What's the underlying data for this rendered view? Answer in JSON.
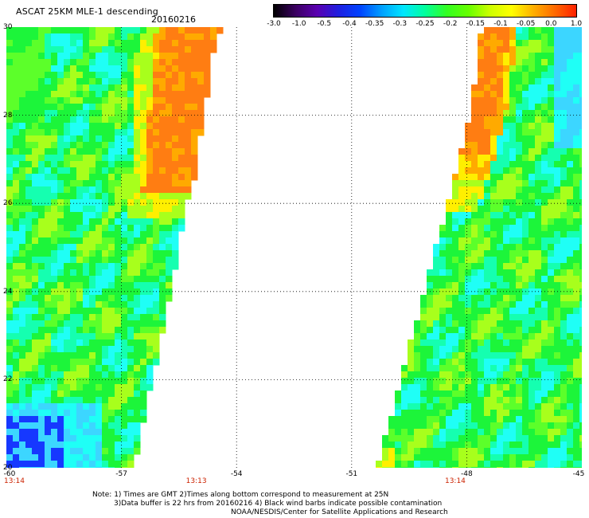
{
  "header": {
    "title": "ASCAT 25KM MLE-1 descending",
    "date": "20160216"
  },
  "colorbar": {
    "labels": [
      "-3.0",
      "-1.0",
      "-0.5",
      "-0.4",
      "-0.35",
      "-0.3",
      "-0.25",
      "-0.2",
      "-0.15",
      "-0.1",
      "-0.05",
      "0.0",
      "1.0"
    ],
    "colors": [
      "#000000",
      "#3a0060",
      "#5a00b0",
      "#1f1fe0",
      "#0044ff",
      "#00a0ff",
      "#00e6ff",
      "#00ff9c",
      "#33ff22",
      "#66ff00",
      "#ccff00",
      "#ffff00",
      "#ffb000",
      "#ff6a00",
      "#ff2000"
    ]
  },
  "map": {
    "lat_labels": [
      "30",
      "28",
      "26",
      "24",
      "22",
      "20"
    ],
    "lon_labels": [
      "-60",
      "-57",
      "-54",
      "-51",
      "-48",
      "-45"
    ],
    "time_labels": [
      "13:14",
      "13:13",
      "13:14"
    ],
    "palette": {
      "blue": "#1638ff",
      "cyan_blue": "#3cd6ff",
      "cyan": "#1ffff6",
      "aqua_green": "#15ffb0",
      "green": "#1cf53a",
      "green_light": "#5cff2a",
      "lime": "#a8ff1c",
      "yellow": "#ffef00",
      "orange_light": "#ffaa00",
      "orange": "#ff7d12"
    }
  },
  "footer": {
    "note_line1": "Note: 1) Times are GMT 2)Times along bottom correspond to measurement at 25N",
    "note_line2": "3)Data buffer is 22 hrs from 20160216 4) Black wind barbs indicate possible contamination",
    "credit": "NOAA/NESDIS/Center for Satellite Applications and Research"
  }
}
